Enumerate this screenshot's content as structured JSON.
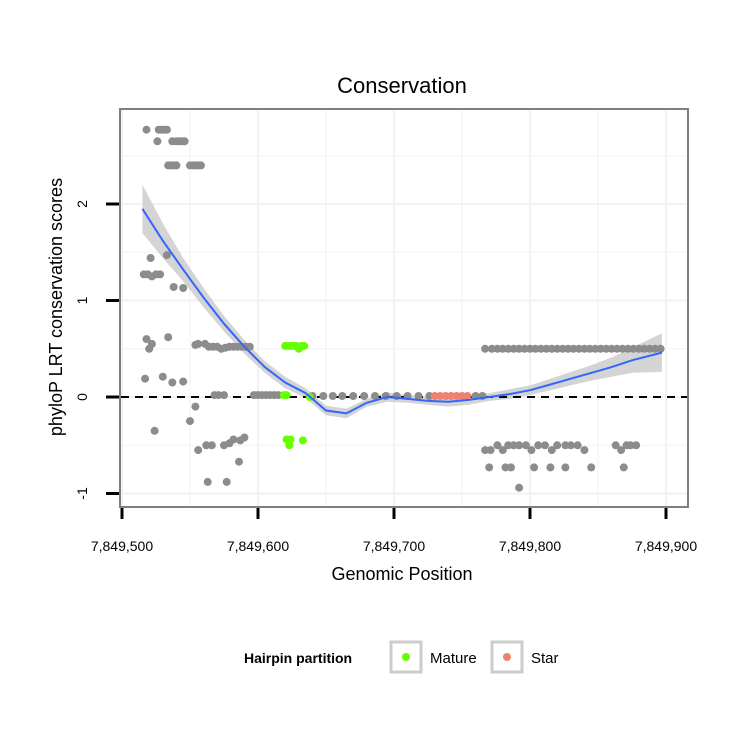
{
  "chart_data": {
    "type": "scatter",
    "title": "Conservation",
    "xlabel": "Genomic Position",
    "ylabel": "phyloP LRT conservation scores",
    "xlim": [
      7849500,
      7849900
    ],
    "ylim": [
      -1.1,
      3.0
    ],
    "x_ticks": [
      7849500,
      7849600,
      7849700,
      7849800,
      7849900
    ],
    "x_tick_labels": [
      "7,849,500",
      "7,849,600",
      "7,849,700",
      "7,849,800",
      "7,849,900"
    ],
    "y_ticks": [
      -1,
      0,
      1,
      2
    ],
    "y_tick_labels": [
      "-1",
      "0",
      "1",
      "2"
    ],
    "grid": true,
    "reference_line": {
      "y": 0,
      "style": "dashed"
    },
    "legend": {
      "title": "Hairpin partition",
      "position": "bottom",
      "entries": [
        {
          "label": "Mature",
          "color": "#66ff00"
        },
        {
          "label": "Star",
          "color": "#f08070"
        }
      ]
    },
    "colors": {
      "other": "#8c8c8c",
      "mature": "#66ff00",
      "star": "#f08070",
      "smooth": "#3366ff",
      "ribbon": "#cccccc"
    },
    "series": [
      {
        "name": "Other",
        "points": [
          [
            7849518,
            2.77
          ],
          [
            7849527,
            2.77
          ],
          [
            7849529,
            2.77
          ],
          [
            7849531,
            2.77
          ],
          [
            7849533,
            2.77
          ],
          [
            7849526,
            2.65
          ],
          [
            7849537,
            2.65
          ],
          [
            7849540,
            2.65
          ],
          [
            7849542,
            2.65
          ],
          [
            7849544,
            2.65
          ],
          [
            7849546,
            2.65
          ],
          [
            7849534,
            2.4
          ],
          [
            7849536,
            2.4
          ],
          [
            7849538,
            2.4
          ],
          [
            7849540,
            2.4
          ],
          [
            7849550,
            2.4
          ],
          [
            7849552,
            2.4
          ],
          [
            7849554,
            2.4
          ],
          [
            7849556,
            2.4
          ],
          [
            7849558,
            2.4
          ],
          [
            7849533,
            1.47
          ],
          [
            7849521,
            1.44
          ],
          [
            7849516,
            1.27
          ],
          [
            7849519,
            1.27
          ],
          [
            7849522,
            1.25
          ],
          [
            7849525,
            1.27
          ],
          [
            7849528,
            1.27
          ],
          [
            7849538,
            1.14
          ],
          [
            7849545,
            1.13
          ],
          [
            7849534,
            0.62
          ],
          [
            7849518,
            0.6
          ],
          [
            7849522,
            0.55
          ],
          [
            7849520,
            0.5
          ],
          [
            7849554,
            0.54
          ],
          [
            7849556,
            0.55
          ],
          [
            7849561,
            0.55
          ],
          [
            7849564,
            0.52
          ],
          [
            7849567,
            0.52
          ],
          [
            7849570,
            0.52
          ],
          [
            7849573,
            0.5
          ],
          [
            7849576,
            0.51
          ],
          [
            7849579,
            0.52
          ],
          [
            7849582,
            0.52
          ],
          [
            7849585,
            0.52
          ],
          [
            7849588,
            0.52
          ],
          [
            7849591,
            0.52
          ],
          [
            7849594,
            0.52
          ],
          [
            7849517,
            0.19
          ],
          [
            7849530,
            0.21
          ],
          [
            7849537,
            0.15
          ],
          [
            7849545,
            0.16
          ],
          [
            7849550,
            -0.25
          ],
          [
            7849554,
            -0.1
          ],
          [
            7849524,
            -0.35
          ],
          [
            7849556,
            -0.55
          ],
          [
            7849562,
            -0.5
          ],
          [
            7849566,
            -0.5
          ],
          [
            7849575,
            -0.5
          ],
          [
            7849579,
            -0.48
          ],
          [
            7849582,
            -0.44
          ],
          [
            7849587,
            -0.45
          ],
          [
            7849590,
            -0.42
          ],
          [
            7849586,
            -0.67
          ],
          [
            7849563,
            -0.88
          ],
          [
            7849577,
            -0.88
          ],
          [
            7849568,
            0.02
          ],
          [
            7849571,
            0.02
          ],
          [
            7849575,
            0.02
          ],
          [
            7849597,
            0.02
          ],
          [
            7849600,
            0.02
          ],
          [
            7849603,
            0.02
          ],
          [
            7849606,
            0.02
          ],
          [
            7849609,
            0.02
          ],
          [
            7849612,
            0.02
          ],
          [
            7849615,
            0.02
          ],
          [
            7849640,
            0.01
          ],
          [
            7849648,
            0.01
          ],
          [
            7849655,
            0.01
          ],
          [
            7849662,
            0.01
          ],
          [
            7849670,
            0.01
          ],
          [
            7849678,
            0.01
          ],
          [
            7849686,
            0.01
          ],
          [
            7849694,
            0.01
          ],
          [
            7849702,
            0.01
          ],
          [
            7849710,
            0.01
          ],
          [
            7849718,
            0.01
          ],
          [
            7849726,
            0.01
          ],
          [
            7849760,
            0.01
          ],
          [
            7849765,
            0.01
          ],
          [
            7849767,
            0.5
          ],
          [
            7849772,
            0.5
          ],
          [
            7849776,
            0.5
          ],
          [
            7849780,
            0.5
          ],
          [
            7849784,
            0.5
          ],
          [
            7849788,
            0.5
          ],
          [
            7849792,
            0.5
          ],
          [
            7849796,
            0.5
          ],
          [
            7849800,
            0.5
          ],
          [
            7849804,
            0.5
          ],
          [
            7849808,
            0.5
          ],
          [
            7849812,
            0.5
          ],
          [
            7849816,
            0.5
          ],
          [
            7849820,
            0.5
          ],
          [
            7849824,
            0.5
          ],
          [
            7849828,
            0.5
          ],
          [
            7849832,
            0.5
          ],
          [
            7849836,
            0.5
          ],
          [
            7849840,
            0.5
          ],
          [
            7849844,
            0.5
          ],
          [
            7849848,
            0.5
          ],
          [
            7849852,
            0.5
          ],
          [
            7849856,
            0.5
          ],
          [
            7849860,
            0.5
          ],
          [
            7849864,
            0.5
          ],
          [
            7849868,
            0.5
          ],
          [
            7849872,
            0.5
          ],
          [
            7849876,
            0.5
          ],
          [
            7849880,
            0.5
          ],
          [
            7849884,
            0.5
          ],
          [
            7849888,
            0.5
          ],
          [
            7849892,
            0.5
          ],
          [
            7849896,
            0.5
          ],
          [
            7849767,
            -0.55
          ],
          [
            7849771,
            -0.55
          ],
          [
            7849776,
            -0.5
          ],
          [
            7849780,
            -0.55
          ],
          [
            7849784,
            -0.5
          ],
          [
            7849788,
            -0.5
          ],
          [
            7849792,
            -0.5
          ],
          [
            7849797,
            -0.5
          ],
          [
            7849801,
            -0.55
          ],
          [
            7849806,
            -0.5
          ],
          [
            7849811,
            -0.5
          ],
          [
            7849816,
            -0.55
          ],
          [
            7849820,
            -0.5
          ],
          [
            7849826,
            -0.5
          ],
          [
            7849830,
            -0.5
          ],
          [
            7849835,
            -0.5
          ],
          [
            7849840,
            -0.55
          ],
          [
            7849863,
            -0.5
          ],
          [
            7849867,
            -0.55
          ],
          [
            7849871,
            -0.5
          ],
          [
            7849874,
            -0.5
          ],
          [
            7849878,
            -0.5
          ],
          [
            7849770,
            -0.73
          ],
          [
            7849782,
            -0.73
          ],
          [
            7849786,
            -0.73
          ],
          [
            7849803,
            -0.73
          ],
          [
            7849815,
            -0.73
          ],
          [
            7849826,
            -0.73
          ],
          [
            7849845,
            -0.73
          ],
          [
            7849869,
            -0.73
          ],
          [
            7849792,
            -0.94
          ]
        ]
      },
      {
        "name": "Mature",
        "points": [
          [
            7849619,
            0.02
          ],
          [
            7849621,
            0.02
          ],
          [
            7849638,
            0.0
          ],
          [
            7849620,
            0.53
          ],
          [
            7849622,
            0.53
          ],
          [
            7849624,
            0.53
          ],
          [
            7849626,
            0.53
          ],
          [
            7849628,
            0.53
          ],
          [
            7849630,
            0.5
          ],
          [
            7849632,
            0.53
          ],
          [
            7849634,
            0.53
          ],
          [
            7849621,
            -0.44
          ],
          [
            7849624,
            -0.44
          ],
          [
            7849623,
            -0.5
          ],
          [
            7849633,
            -0.45
          ]
        ]
      },
      {
        "name": "Star",
        "points": [
          [
            7849730,
            0.01
          ],
          [
            7849734,
            0.01
          ],
          [
            7849738,
            0.01
          ],
          [
            7849742,
            0.01
          ],
          [
            7849746,
            0.01
          ],
          [
            7849750,
            0.01
          ],
          [
            7849754,
            0.01
          ]
        ]
      }
    ],
    "smooth_line": {
      "x": [
        7849515,
        7849530,
        7849545,
        7849560,
        7849575,
        7849590,
        7849605,
        7849620,
        7849635,
        7849650,
        7849665,
        7849680,
        7849695,
        7849710,
        7849725,
        7849740,
        7849755,
        7849770,
        7849785,
        7849800,
        7849815,
        7849830,
        7849845,
        7849860,
        7849875,
        7849897
      ],
      "y": [
        1.95,
        1.62,
        1.32,
        1.03,
        0.76,
        0.52,
        0.31,
        0.15,
        0.04,
        -0.14,
        -0.17,
        -0.06,
        0.0,
        -0.02,
        -0.04,
        -0.05,
        -0.03,
        0.0,
        0.03,
        0.07,
        0.13,
        0.19,
        0.25,
        0.31,
        0.38,
        0.46
      ],
      "ci_halfwidth": [
        0.25,
        0.18,
        0.12,
        0.1,
        0.08,
        0.07,
        0.06,
        0.06,
        0.05,
        0.05,
        0.05,
        0.04,
        0.05,
        0.04,
        0.04,
        0.05,
        0.05,
        0.04,
        0.05,
        0.05,
        0.06,
        0.07,
        0.08,
        0.1,
        0.13,
        0.2
      ]
    }
  }
}
